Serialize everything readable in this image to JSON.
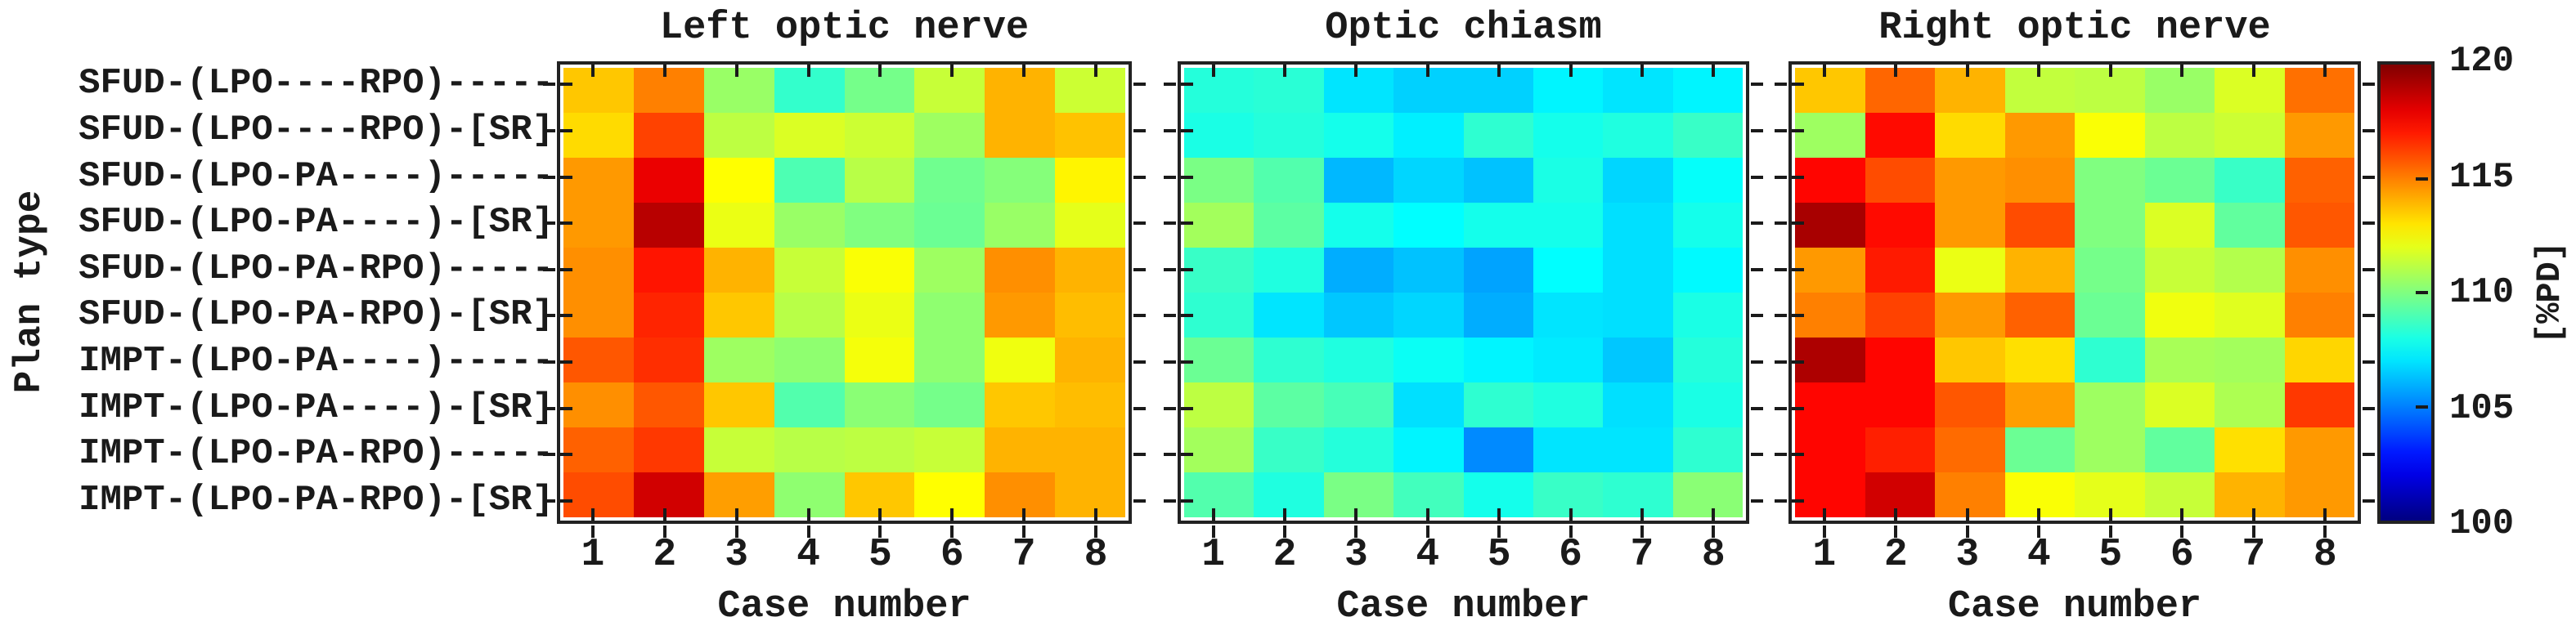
{
  "figure": {
    "ylabel": "Plan type",
    "xlabel": "Case number",
    "background": "#ffffff",
    "text_color": "#1a1a1a",
    "axis_color": "#222222"
  },
  "plan_types": [
    "SFUD-(LPO----RPO)-----",
    "SFUD-(LPO----RPO)-[SR]",
    "SFUD-(LPO-PA----)-----",
    "SFUD-(LPO-PA----)-[SR]",
    "SFUD-(LPO-PA-RPO)-----",
    "SFUD-(LPO-PA-RPO)-[SR]",
    "IMPT-(LPO-PA----)-----",
    "IMPT-(LPO-PA----)-[SR]",
    "IMPT-(LPO-PA-RPO)-----",
    "IMPT-(LPO-PA-RPO)-[SR]"
  ],
  "case_numbers": [
    "1",
    "2",
    "3",
    "4",
    "5",
    "6",
    "7",
    "8"
  ],
  "chart_data": [
    {
      "type": "heatmap",
      "title": "Left optic nerve",
      "xlabel": "Case number",
      "ylabel": "Plan type",
      "x": [
        1,
        2,
        3,
        4,
        5,
        6,
        7,
        8
      ],
      "y_categories": [
        "SFUD-(LPO----RPO)-----",
        "SFUD-(LPO----RPO)-[SR]",
        "SFUD-(LPO-PA----)-----",
        "SFUD-(LPO-PA----)-[SR]",
        "SFUD-(LPO-PA-RPO)-----",
        "SFUD-(LPO-PA-RPO)-[SR]",
        "IMPT-(LPO-PA----)-----",
        "IMPT-(LPO-PA----)-[SR]",
        "IMPT-(LPO-PA-RPO)-----",
        "IMPT-(LPO-PA-RPO)-[SR]"
      ],
      "vmin": 100,
      "vmax": 120,
      "colormap": "jet",
      "unit": "%PD",
      "values": [
        [
          113.6,
          115.0,
          110.5,
          108.5,
          109.8,
          111.4,
          114.0,
          111.5
        ],
        [
          113.2,
          116.2,
          111.2,
          111.8,
          111.5,
          110.6,
          114.0,
          113.7
        ],
        [
          114.5,
          117.9,
          112.5,
          109.0,
          111.1,
          109.7,
          110.1,
          112.7
        ],
        [
          114.5,
          118.9,
          112.1,
          110.5,
          110.0,
          109.6,
          110.5,
          112.0
        ],
        [
          114.7,
          117.1,
          114.0,
          111.4,
          112.4,
          110.6,
          114.7,
          114.0
        ],
        [
          114.7,
          116.8,
          113.6,
          111.1,
          112.1,
          110.3,
          114.5,
          113.8
        ],
        [
          115.8,
          116.6,
          110.6,
          110.3,
          112.3,
          110.3,
          112.2,
          114.0
        ],
        [
          114.7,
          115.8,
          113.6,
          109.1,
          110.2,
          109.8,
          113.6,
          113.8
        ],
        [
          115.6,
          116.4,
          111.4,
          111.1,
          111.2,
          111.4,
          114.0,
          114.0
        ],
        [
          116.0,
          118.4,
          114.4,
          110.3,
          113.6,
          112.5,
          114.7,
          114.0
        ]
      ]
    },
    {
      "type": "heatmap",
      "title": "Optic chiasm",
      "xlabel": "Case number",
      "ylabel": "Plan type",
      "x": [
        1,
        2,
        3,
        4,
        5,
        6,
        7,
        8
      ],
      "y_categories": [
        "SFUD-(LPO----RPO)-----",
        "SFUD-(LPO----RPO)-[SR]",
        "SFUD-(LPO-PA----)-----",
        "SFUD-(LPO-PA----)-[SR]",
        "SFUD-(LPO-PA-RPO)-----",
        "SFUD-(LPO-PA-RPO)-[SR]",
        "IMPT-(LPO-PA----)-----",
        "IMPT-(LPO-PA----)-[SR]",
        "IMPT-(LPO-PA-RPO)-----",
        "IMPT-(LPO-PA-RPO)-[SR]"
      ],
      "vmin": 100,
      "vmax": 120,
      "colormap": "jet",
      "unit": "%PD",
      "values": [
        [
          108.2,
          108.3,
          107.0,
          106.6,
          106.6,
          107.3,
          107.0,
          107.3
        ],
        [
          108.0,
          108.2,
          107.9,
          107.2,
          108.4,
          107.9,
          108.1,
          108.6
        ],
        [
          109.9,
          109.1,
          106.1,
          106.7,
          106.3,
          108.0,
          106.7,
          107.6
        ],
        [
          110.7,
          109.3,
          107.9,
          107.5,
          107.9,
          107.9,
          106.9,
          107.9
        ],
        [
          108.6,
          108.1,
          105.9,
          106.3,
          105.7,
          107.5,
          106.9,
          107.4
        ],
        [
          108.4,
          107.0,
          106.4,
          106.7,
          105.9,
          107.0,
          106.9,
          108.0
        ],
        [
          109.6,
          108.4,
          108.1,
          107.7,
          107.3,
          107.1,
          106.4,
          108.2
        ],
        [
          111.2,
          109.3,
          108.9,
          106.9,
          108.4,
          108.1,
          106.9,
          108.0
        ],
        [
          110.7,
          108.6,
          108.2,
          107.3,
          105.2,
          107.0,
          107.0,
          108.4
        ],
        [
          109.1,
          108.1,
          109.9,
          108.8,
          107.9,
          108.6,
          108.4,
          110.2
        ]
      ]
    },
    {
      "type": "heatmap",
      "title": "Right optic nerve",
      "xlabel": "Case number",
      "ylabel": "Plan type",
      "x": [
        1,
        2,
        3,
        4,
        5,
        6,
        7,
        8
      ],
      "y_categories": [
        "SFUD-(LPO----RPO)-----",
        "SFUD-(LPO----RPO)-[SR]",
        "SFUD-(LPO-PA----)-----",
        "SFUD-(LPO-PA----)-[SR]",
        "SFUD-(LPO-PA-RPO)-----",
        "SFUD-(LPO-PA-RPO)-[SR]",
        "IMPT-(LPO-PA----)-----",
        "IMPT-(LPO-PA----)-[SR]",
        "IMPT-(LPO-PA-RPO)-----",
        "IMPT-(LPO-PA-RPO)-[SR]"
      ],
      "vmin": 100,
      "vmax": 120,
      "colormap": "jet",
      "unit": "%PD",
      "values": [
        [
          113.6,
          115.5,
          114.0,
          111.3,
          111.2,
          110.5,
          111.8,
          115.3
        ],
        [
          110.6,
          117.3,
          113.2,
          114.5,
          112.4,
          111.2,
          111.5,
          114.5
        ],
        [
          117.4,
          116.0,
          114.5,
          114.7,
          110.0,
          109.6,
          108.6,
          115.6
        ],
        [
          119.2,
          117.3,
          114.5,
          116.0,
          110.0,
          111.8,
          109.4,
          115.8
        ],
        [
          114.5,
          117.0,
          112.1,
          114.0,
          109.8,
          111.4,
          111.0,
          114.7
        ],
        [
          115.0,
          116.2,
          114.5,
          115.6,
          109.6,
          112.2,
          111.9,
          115.0
        ],
        [
          119.1,
          117.4,
          113.6,
          113.1,
          108.4,
          110.8,
          110.7,
          113.3
        ],
        [
          117.4,
          117.4,
          115.8,
          114.4,
          110.6,
          111.8,
          110.9,
          116.4
        ],
        [
          117.4,
          116.9,
          115.4,
          109.6,
          110.6,
          109.4,
          113.1,
          114.5
        ],
        [
          117.4,
          118.4,
          115.0,
          112.4,
          112.0,
          111.4,
          114.0,
          114.5
        ]
      ]
    }
  ],
  "colorbar": {
    "ticks": [
      "120",
      "115",
      "110",
      "105",
      "100"
    ],
    "tick_values": [
      120,
      115,
      110,
      105,
      100
    ],
    "label": "[%PD]",
    "vmin": 100,
    "vmax": 120,
    "colormap": "jet"
  }
}
